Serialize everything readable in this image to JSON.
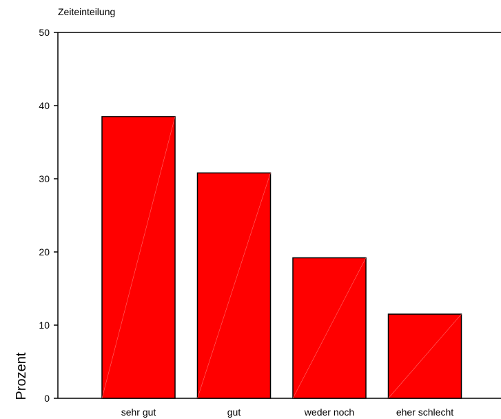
{
  "chart_data": {
    "type": "bar",
    "title": "Zeiteinteilung",
    "ylabel": "Prozent",
    "xlabel": "",
    "categories": [
      "sehr gut",
      "gut",
      "weder noch",
      "eher schlecht"
    ],
    "values": [
      38.5,
      30.8,
      19.2,
      11.5
    ],
    "ylim": [
      0,
      50
    ],
    "yticks": [
      "0",
      "10",
      "20",
      "30",
      "40",
      "50"
    ],
    "grid": false,
    "bar_color": "#ff0000",
    "bar_edge_color": "#000000"
  }
}
